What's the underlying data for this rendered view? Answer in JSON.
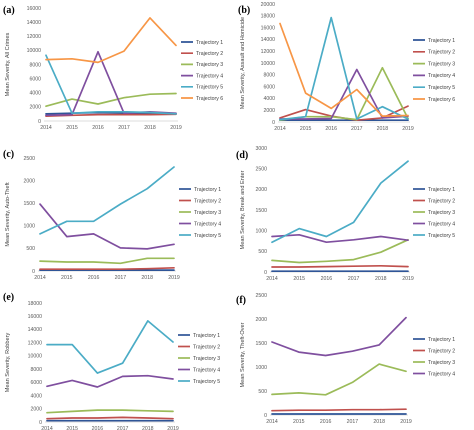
{
  "chart_data": [
    {
      "panel": "(a)",
      "type": "line",
      "ylabel": "Mean Severity, All Crimes",
      "ylim": [
        0,
        16000
      ],
      "yticks": [
        0,
        2000,
        4000,
        6000,
        8000,
        10000,
        12000,
        14000,
        16000
      ],
      "x": [
        "2014",
        "2015",
        "2016",
        "2017",
        "2018",
        "2019"
      ],
      "legend_position": "right",
      "series": [
        {
          "name": "Trajectory 1",
          "color": "#2f5597",
          "values": [
            1000,
            1100,
            1200,
            1100,
            1100,
            1050
          ]
        },
        {
          "name": "Trajectory 2",
          "color": "#c0504d",
          "values": [
            700,
            800,
            900,
            900,
            900,
            950
          ]
        },
        {
          "name": "Trajectory 3",
          "color": "#9bbb59",
          "values": [
            2100,
            3100,
            2400,
            3300,
            3800,
            3900
          ]
        },
        {
          "name": "Trajectory 4",
          "color": "#7f4f9f",
          "values": [
            800,
            900,
            9800,
            1100,
            1300,
            1100
          ]
        },
        {
          "name": "Trajectory 5",
          "color": "#4bacc6",
          "values": [
            9300,
            1100,
            1300,
            1300,
            1200,
            1000
          ]
        },
        {
          "name": "Trajectory 6",
          "color": "#f79646",
          "values": [
            8700,
            8800,
            8300,
            9900,
            14600,
            10700
          ]
        }
      ]
    },
    {
      "panel": "(b)",
      "type": "line",
      "ylabel": "Mean Severity, Assault and Homicide",
      "ylim": [
        0,
        20000
      ],
      "yticks": [
        0,
        2000,
        4000,
        6000,
        8000,
        10000,
        12000,
        14000,
        16000,
        18000,
        20000
      ],
      "x": [
        "2014",
        "2015",
        "2016",
        "2017",
        "2018",
        "2019"
      ],
      "legend_position": "right",
      "series": [
        {
          "name": "Trajectory 1",
          "color": "#2f5597",
          "values": [
            300,
            300,
            300,
            300,
            300,
            300
          ]
        },
        {
          "name": "Trajectory 2",
          "color": "#c0504d",
          "values": [
            700,
            2100,
            1000,
            300,
            700,
            2700
          ]
        },
        {
          "name": "Trajectory 3",
          "color": "#9bbb59",
          "values": [
            300,
            900,
            900,
            400,
            9200,
            600
          ]
        },
        {
          "name": "Trajectory 4",
          "color": "#7f4f9f",
          "values": [
            500,
            500,
            600,
            8900,
            700,
            1000
          ]
        },
        {
          "name": "Trajectory 5",
          "color": "#4bacc6",
          "values": [
            400,
            900,
            17700,
            500,
            2600,
            500
          ]
        },
        {
          "name": "Trajectory 6",
          "color": "#f79646",
          "values": [
            16700,
            4900,
            2300,
            5500,
            1000,
            1100
          ]
        }
      ]
    },
    {
      "panel": "(c)",
      "type": "line",
      "ylabel": "Mean Severity, Auto-Theft",
      "ylim": [
        0,
        2500
      ],
      "yticks": [
        0,
        500,
        1000,
        1500,
        2000,
        2500
      ],
      "x": [
        "2014",
        "2015",
        "2016",
        "2017",
        "2018",
        "2019"
      ],
      "legend_position": "right",
      "series": [
        {
          "name": "Trajectory 1",
          "color": "#2f5597",
          "values": [
            20,
            20,
            20,
            20,
            20,
            20
          ]
        },
        {
          "name": "Trajectory 2",
          "color": "#c0504d",
          "values": [
            40,
            40,
            40,
            40,
            50,
            70
          ]
        },
        {
          "name": "Trajectory 3",
          "color": "#9bbb59",
          "values": [
            220,
            200,
            200,
            170,
            280,
            280
          ]
        },
        {
          "name": "Trajectory 4",
          "color": "#7f4f9f",
          "values": [
            1480,
            760,
            820,
            510,
            490,
            590
          ]
        },
        {
          "name": "Trajectory 5",
          "color": "#4bacc6",
          "values": [
            820,
            1100,
            1100,
            1480,
            1820,
            2300
          ]
        }
      ]
    },
    {
      "panel": "(d)",
      "type": "line",
      "ylabel": "Mean Severity, Break and Enter",
      "ylim": [
        0,
        3000
      ],
      "yticks": [
        0,
        500,
        1000,
        1500,
        2000,
        2500,
        3000
      ],
      "x": [
        "2014",
        "2015",
        "2016",
        "2017",
        "2018",
        "2019"
      ],
      "legend_position": "right",
      "series": [
        {
          "name": "Trajectory 1",
          "color": "#2f5597",
          "values": [
            20,
            20,
            20,
            20,
            20,
            20
          ]
        },
        {
          "name": "Trajectory 2",
          "color": "#c0504d",
          "values": [
            120,
            120,
            130,
            140,
            150,
            130
          ]
        },
        {
          "name": "Trajectory 3",
          "color": "#9bbb59",
          "values": [
            280,
            230,
            260,
            300,
            480,
            780
          ]
        },
        {
          "name": "Trajectory 4",
          "color": "#7f4f9f",
          "values": [
            860,
            900,
            720,
            780,
            860,
            770
          ]
        },
        {
          "name": "Trajectory 5",
          "color": "#4bacc6",
          "values": [
            720,
            1050,
            860,
            1200,
            2150,
            2680
          ]
        }
      ]
    },
    {
      "panel": "(e)",
      "type": "line",
      "ylabel": "Mean Severity, Robbery",
      "ylim": [
        0,
        18000
      ],
      "yticks": [
        0,
        2000,
        4000,
        6000,
        8000,
        10000,
        12000,
        14000,
        16000,
        18000
      ],
      "x": [
        "2014",
        "2015",
        "2016",
        "2017",
        "2018",
        "2019"
      ],
      "legend_position": "right",
      "series": [
        {
          "name": "Trajectory 1",
          "color": "#2f5597",
          "values": [
            200,
            200,
            200,
            200,
            200,
            200
          ]
        },
        {
          "name": "Trajectory 2",
          "color": "#c0504d",
          "values": [
            500,
            600,
            600,
            700,
            600,
            500
          ]
        },
        {
          "name": "Trajectory 3",
          "color": "#9bbb59",
          "values": [
            1400,
            1600,
            1800,
            1800,
            1700,
            1600
          ]
        },
        {
          "name": "Trajectory 4",
          "color": "#7f4f9f",
          "values": [
            5400,
            6300,
            5300,
            6900,
            7000,
            6500
          ]
        },
        {
          "name": "Trajectory 5",
          "color": "#4bacc6",
          "values": [
            11700,
            11700,
            7400,
            8900,
            15300,
            12100
          ]
        }
      ]
    },
    {
      "panel": "(f)",
      "type": "line",
      "ylabel": "Mean Severity, Theft-Over",
      "ylim": [
        0,
        2500
      ],
      "yticks": [
        0,
        500,
        1000,
        1500,
        2000,
        2500
      ],
      "x": [
        "2014",
        "2015",
        "2016",
        "2017",
        "2018",
        "2019"
      ],
      "legend_position": "right",
      "series": [
        {
          "name": "Trajectory 1",
          "color": "#2f5597",
          "values": [
            20,
            20,
            20,
            20,
            20,
            20
          ]
        },
        {
          "name": "Trajectory 2",
          "color": "#c0504d",
          "values": [
            90,
            100,
            100,
            110,
            110,
            120
          ]
        },
        {
          "name": "Trajectory 3",
          "color": "#9bbb59",
          "values": [
            430,
            460,
            420,
            680,
            1060,
            910
          ]
        },
        {
          "name": "Trajectory 4",
          "color": "#7f4f9f",
          "values": [
            1520,
            1310,
            1240,
            1330,
            1460,
            2030
          ]
        }
      ]
    }
  ]
}
